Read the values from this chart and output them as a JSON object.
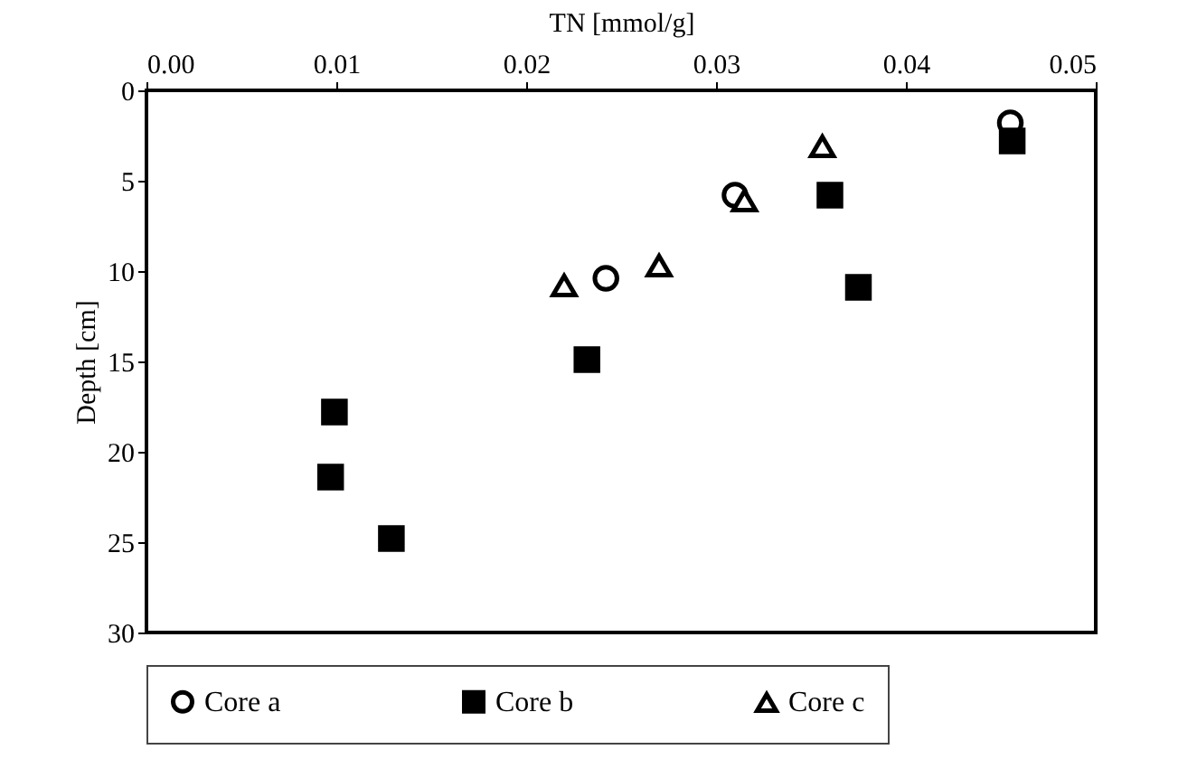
{
  "chart_data": {
    "type": "scatter",
    "xlabel": "TN [mmol/g]",
    "ylabel": "Depth [cm]",
    "xlim": [
      0,
      0.05
    ],
    "xticks": [
      {
        "value": 0,
        "label": "0.00"
      },
      0.01,
      0.02,
      0.03,
      0.04,
      0.05
    ],
    "ylim": [
      30,
      0
    ],
    "yticks": [
      0,
      5,
      10,
      15,
      20,
      25,
      30
    ],
    "grid": false,
    "legend": "bottom",
    "series": [
      {
        "name": "Core a",
        "color": "#000000",
        "marker": "circle",
        "x": [
          0.0455,
          0.031,
          0.0242
        ],
        "values": [
          1.8,
          5.8,
          10.4
        ]
      },
      {
        "name": "Core b",
        "color": "#000000",
        "marker": "square",
        "x": [
          0.0456,
          0.036,
          0.0375,
          0.0232,
          0.0099,
          0.0097,
          0.0129
        ],
        "values": [
          2.8,
          5.8,
          10.9,
          14.9,
          17.8,
          21.4,
          24.8
        ]
      },
      {
        "name": "Core c",
        "color": "#000000",
        "marker": "triangle",
        "x": [
          0.0356,
          0.0315,
          0.027,
          0.022
        ],
        "values": [
          3.1,
          6.1,
          9.7,
          10.8
        ]
      }
    ]
  }
}
